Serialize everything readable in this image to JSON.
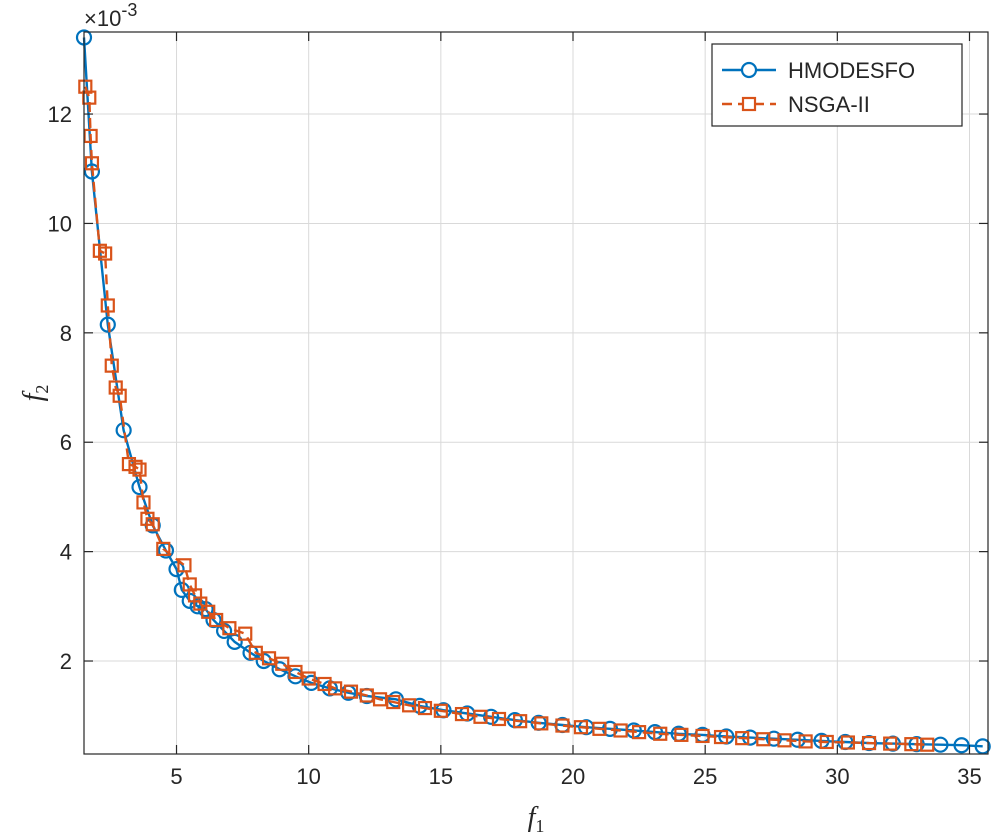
{
  "chart_data": {
    "type": "line",
    "title": "",
    "xlabel": "f1",
    "ylabel": "f2",
    "y_exponent_label": "×10-3",
    "xlim": [
      1.5,
      35.7
    ],
    "ylim": [
      0.3,
      13.5
    ],
    "xticks": [
      5,
      10,
      15,
      20,
      25,
      30,
      35
    ],
    "yticks": [
      2,
      4,
      6,
      8,
      10,
      12
    ],
    "grid": true,
    "legend_position": "top-right",
    "series": [
      {
        "name": "HMODESFO",
        "color": "#0072BD",
        "marker": "circle",
        "line": "solid",
        "x": [
          1.5,
          1.8,
          2.4,
          3.0,
          3.6,
          4.1,
          4.6,
          5.0,
          5.2,
          5.5,
          5.8,
          6.1,
          6.4,
          6.8,
          7.2,
          7.8,
          8.3,
          8.9,
          9.5,
          10.1,
          10.8,
          11.5,
          12.2,
          13.3,
          14.2,
          15.1,
          16.0,
          16.9,
          17.8,
          18.7,
          19.6,
          20.5,
          21.4,
          22.3,
          23.1,
          24.0,
          24.9,
          25.8,
          26.7,
          27.6,
          28.5,
          29.4,
          30.3,
          31.2,
          32.1,
          33.0,
          33.9,
          34.7,
          35.5
        ],
        "y": [
          13.4,
          10.95,
          8.15,
          6.22,
          5.18,
          4.48,
          4.02,
          3.68,
          3.3,
          3.1,
          3.0,
          2.95,
          2.75,
          2.55,
          2.35,
          2.15,
          2.0,
          1.85,
          1.72,
          1.6,
          1.5,
          1.42,
          1.36,
          1.3,
          1.18,
          1.1,
          1.04,
          0.98,
          0.92,
          0.87,
          0.83,
          0.79,
          0.76,
          0.73,
          0.7,
          0.67,
          0.65,
          0.62,
          0.6,
          0.58,
          0.56,
          0.54,
          0.52,
          0.5,
          0.49,
          0.48,
          0.47,
          0.46,
          0.44
        ]
      },
      {
        "name": "NSGA-II",
        "color": "#D95319",
        "marker": "square",
        "line": "dashed",
        "x": [
          1.55,
          1.7,
          1.75,
          1.8,
          2.1,
          2.3,
          2.4,
          2.55,
          2.7,
          2.85,
          3.2,
          3.45,
          3.6,
          3.75,
          3.9,
          4.1,
          4.5,
          5.3,
          5.5,
          5.7,
          5.9,
          6.2,
          6.5,
          7.0,
          7.6,
          8.0,
          8.5,
          9.0,
          9.5,
          10.0,
          10.6,
          11.0,
          11.6,
          12.2,
          12.7,
          13.2,
          13.8,
          14.4,
          15.0,
          15.8,
          16.5,
          17.2,
          18.0,
          18.8,
          19.6,
          20.3,
          21.0,
          21.8,
          22.5,
          23.3,
          24.1,
          24.9,
          25.6,
          26.4,
          27.2,
          28.0,
          28.8,
          29.6,
          30.4,
          31.2,
          32.0,
          32.8,
          33.4
        ],
        "y": [
          12.5,
          12.3,
          11.6,
          11.1,
          9.5,
          9.45,
          8.5,
          7.4,
          7.0,
          6.85,
          5.6,
          5.55,
          5.5,
          4.9,
          4.6,
          4.5,
          4.05,
          3.75,
          3.4,
          3.2,
          3.05,
          2.9,
          2.75,
          2.6,
          2.5,
          2.15,
          2.05,
          1.95,
          1.8,
          1.68,
          1.58,
          1.5,
          1.44,
          1.37,
          1.3,
          1.25,
          1.19,
          1.14,
          1.09,
          1.03,
          0.98,
          0.94,
          0.9,
          0.86,
          0.82,
          0.79,
          0.76,
          0.73,
          0.7,
          0.67,
          0.65,
          0.63,
          0.61,
          0.59,
          0.57,
          0.55,
          0.53,
          0.52,
          0.51,
          0.5,
          0.49,
          0.48,
          0.47
        ]
      }
    ]
  }
}
